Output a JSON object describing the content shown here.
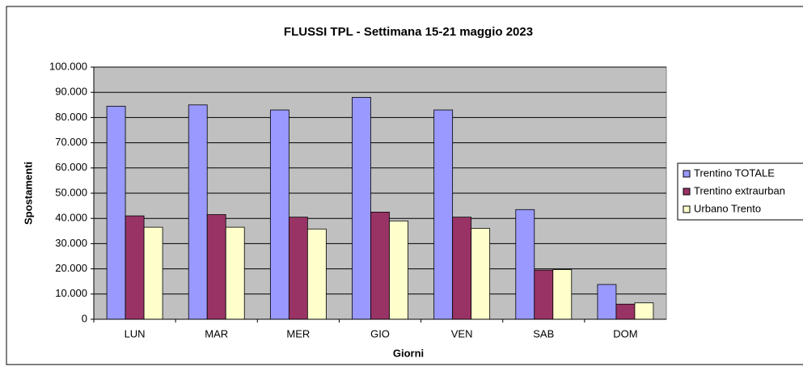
{
  "chart_data": {
    "type": "bar",
    "title": "FLUSSI TPL - Settimana 15-21 maggio 2023",
    "x_label": "Giorni",
    "y_label": "Spostamenti",
    "categories": [
      "LUN",
      "MAR",
      "MER",
      "GIO",
      "VEN",
      "SAB",
      "DOM"
    ],
    "series": [
      {
        "name": "Trentino TOTALE",
        "color": "#9999ff",
        "values": [
          84500,
          85000,
          83000,
          88000,
          83000,
          43500,
          13800
        ]
      },
      {
        "name": "Trentino extraurban",
        "color": "#993366",
        "values": [
          41000,
          41500,
          40500,
          42500,
          40500,
          19500,
          6000
        ]
      },
      {
        "name": "Urbano Trento",
        "color": "#ffffcc",
        "values": [
          36500,
          36500,
          35800,
          39000,
          36000,
          19700,
          6500
        ]
      }
    ],
    "ylim": [
      0,
      100000
    ],
    "yticks": [
      0,
      {
        "value": 10000,
        "label": "10.000"
      },
      {
        "value": 20000,
        "label": "20.000"
      },
      {
        "value": 30000,
        "label": "30.000"
      },
      {
        "value": 40000,
        "label": "40.000"
      },
      {
        "value": 50000,
        "label": "50.000"
      },
      {
        "value": 60000,
        "label": "60.000"
      },
      {
        "value": 70000,
        "label": "70.000"
      },
      {
        "value": 80000,
        "label": "80.000"
      },
      {
        "value": 90000,
        "label": "90.000"
      },
      {
        "value": 100000,
        "label": "100.000"
      }
    ],
    "grid": true,
    "legend": "right"
  }
}
